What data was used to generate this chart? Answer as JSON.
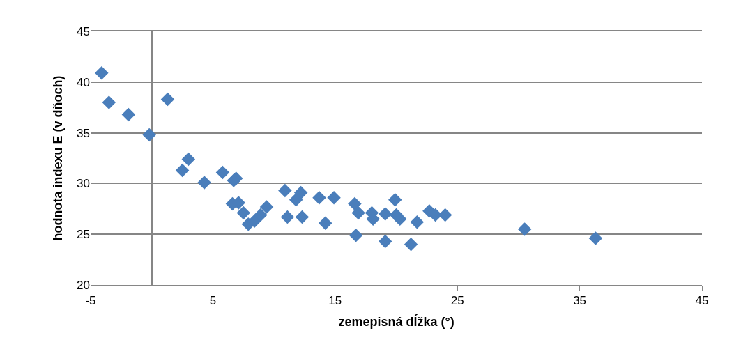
{
  "chart_data": {
    "type": "scatter",
    "xlabel": "zemepisná dĺžka (°)",
    "ylabel": "hodnota indexu E (v dňoch)",
    "xlim": [
      -5,
      45
    ],
    "xticks": [
      -5,
      5,
      15,
      25,
      35,
      45
    ],
    "ylim": [
      20,
      45
    ],
    "yticks": [
      20,
      25,
      30,
      35,
      40,
      45
    ],
    "grid": "y",
    "marker": "diamond",
    "series": [
      {
        "color": "#4a7ebb",
        "x": [
          -4.1,
          -3.5,
          -1.9,
          -0.2,
          1.3,
          2.5,
          3.0,
          4.3,
          5.8,
          6.7,
          6.9,
          6.6,
          7.1,
          7.5,
          7.9,
          8.4,
          8.9,
          9.4,
          10.9,
          12.2,
          11.8,
          13.7,
          14.9,
          11.1,
          12.3,
          14.2,
          16.6,
          16.9,
          16.7,
          18.0,
          18.1,
          19.1,
          19.9,
          20.0,
          20.3,
          19.1,
          21.2,
          21.7,
          22.7,
          23.2,
          24.0,
          30.5,
          36.3
        ],
        "values": [
          40.9,
          38.0,
          36.8,
          34.8,
          38.3,
          31.3,
          32.4,
          30.1,
          31.1,
          30.3,
          30.5,
          28.0,
          28.1,
          27.1,
          26.0,
          26.3,
          26.9,
          27.7,
          29.3,
          29.1,
          28.4,
          28.6,
          28.6,
          26.7,
          26.7,
          26.1,
          28.0,
          27.1,
          24.9,
          27.1,
          26.5,
          27.0,
          28.4,
          26.9,
          26.5,
          24.3,
          24.0,
          26.2,
          27.3,
          26.9,
          26.9,
          25.5,
          24.6
        ]
      }
    ]
  }
}
